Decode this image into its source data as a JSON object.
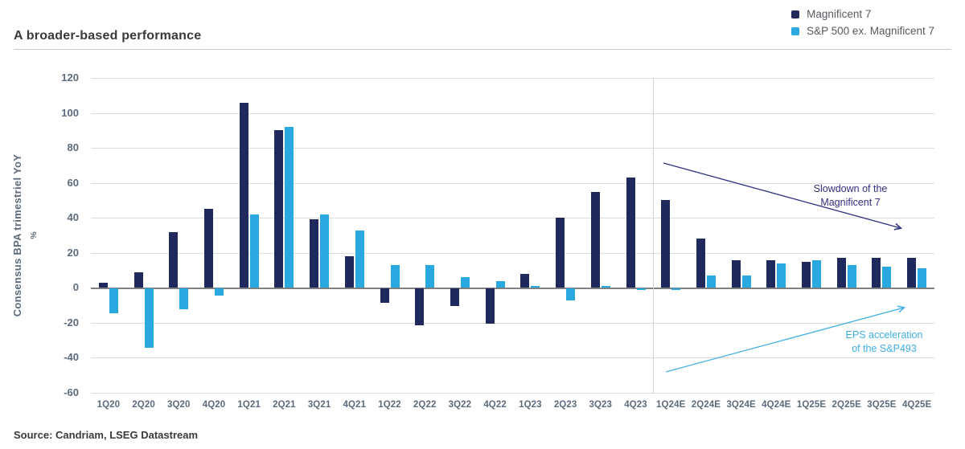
{
  "header": {
    "title": "A broader-based performance"
  },
  "legend": {
    "items": [
      {
        "label": "Magnificent 7"
      },
      {
        "label": "S&P 500 ex. Magnificent 7"
      }
    ]
  },
  "chart_data": {
    "type": "bar",
    "title": "A broader-based performance",
    "ylabel": "Consensus BPA trimestriel YoY",
    "ylabel_unit": "%",
    "ylim": [
      -60,
      120
    ],
    "yticks": [
      120,
      100,
      80,
      60,
      40,
      20,
      0,
      -20,
      -40,
      -60
    ],
    "grid": "horizontal",
    "legend_position": "top-right",
    "categories": [
      "1Q20",
      "2Q20",
      "3Q20",
      "4Q20",
      "1Q21",
      "2Q21",
      "3Q21",
      "4Q21",
      "1Q22",
      "2Q22",
      "3Q22",
      "4Q22",
      "1Q23",
      "2Q23",
      "3Q23",
      "4Q23",
      "1Q24E",
      "2Q24E",
      "3Q24E",
      "4Q24E",
      "1Q25E",
      "2Q25E",
      "3Q25E",
      "4Q25E"
    ],
    "forecast_start_index": 16,
    "series": [
      {
        "name": "Magnificent 7",
        "color": "#20295c",
        "values": [
          3,
          9,
          32,
          45,
          106,
          90,
          39,
          18,
          -8,
          -21,
          -10,
          -20,
          8,
          40,
          55,
          63,
          50,
          28,
          16,
          16,
          15,
          17,
          17,
          17
        ]
      },
      {
        "name": "S&P 500 ex. Magnificent 7",
        "color": "#29a9e0",
        "values": [
          -14,
          -34,
          -12,
          -4,
          42,
          92,
          42,
          33,
          13,
          13,
          6,
          4,
          1,
          -7,
          1,
          -1,
          -1,
          7,
          7,
          14,
          16,
          13,
          12,
          11
        ]
      }
    ],
    "annotations": [
      {
        "text": "Slowdown of the\nMagnificent 7",
        "color": "#2e3180"
      },
      {
        "text": "EPS acceleration\nof the S&P493",
        "color": "#3fb0e5"
      }
    ]
  },
  "footer": {
    "source": "Source: Candriam, LSEG Datastream"
  }
}
